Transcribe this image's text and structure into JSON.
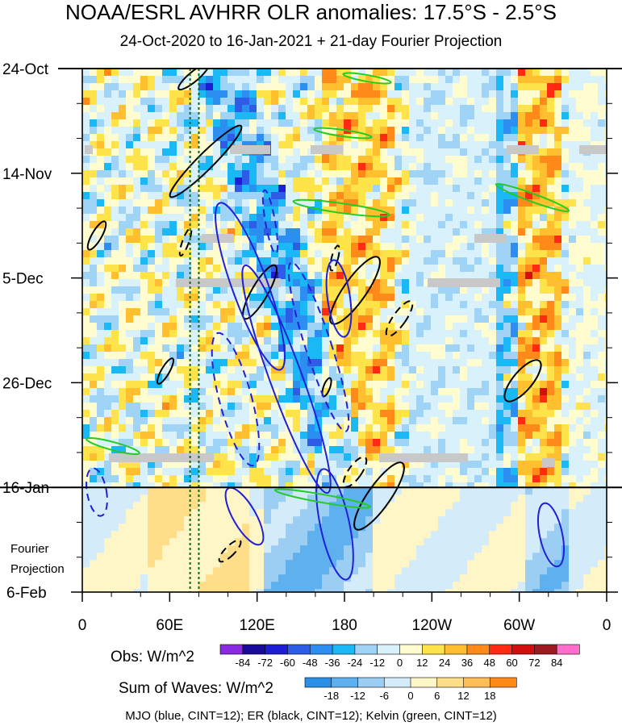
{
  "title": "NOAA/ESRL AVHRR OLR anomalies: 17.5°S - 2.5°S",
  "subtitle": "24-Oct-2020 to 16-Jan-2021 + 21-day Fourier Projection",
  "chart_data": {
    "type": "heatmap",
    "description_axis": "Hovmöller: longitude (x) vs time (y)",
    "x_ticks": [
      "0",
      "60E",
      "120E",
      "180",
      "120W",
      "60W",
      "0"
    ],
    "x_values_deg": [
      0,
      60,
      120,
      180,
      240,
      300,
      360
    ],
    "xlim": [
      0,
      360
    ],
    "y_ticks": [
      "24-Oct",
      "14-Nov",
      "5-Dec",
      "26-Dec",
      "16-Jan",
      "6-Feb"
    ],
    "y_day_offsets": [
      0,
      21,
      42,
      63,
      84,
      105
    ],
    "ylim_days": [
      0,
      105
    ],
    "projection_start_day": 84,
    "projection_label": [
      "Fourier",
      "Projection"
    ],
    "obs_colorbar": {
      "label": "Obs: W/m^2",
      "levels": [
        -84,
        -72,
        -60,
        -48,
        -36,
        -24,
        -12,
        0,
        12,
        24,
        36,
        48,
        60,
        72,
        84
      ],
      "colors": [
        "#8a2be2",
        "#1a0c9a",
        "#1d1dd6",
        "#2f5ce6",
        "#2b8ef0",
        "#1ab8f5",
        "#9fd4f6",
        "#d9f1fb",
        "#fffcd0",
        "#ffe34a",
        "#ffbf2e",
        "#ff8a1a",
        "#ff2a12",
        "#d20e0e",
        "#9e1a22",
        "#ff6ecb"
      ]
    },
    "waves_colorbar": {
      "label": "Sum of Waves: W/m^2",
      "levels": [
        -18,
        -12,
        -6,
        0,
        6,
        12,
        18
      ],
      "colors": [
        "#2a8fe6",
        "#5fb0ee",
        "#9ccdf2",
        "#d4ecfa",
        "#fff6c8",
        "#ffde8a",
        "#ffbd55",
        "#ff8a1a"
      ]
    },
    "overlay_contours": [
      {
        "name": "MJO",
        "color": "blue",
        "cint": 12
      },
      {
        "name": "ER",
        "color": "black",
        "cint": 12
      },
      {
        "name": "Kelvin",
        "color": "green",
        "cint": 12
      }
    ],
    "reference_lines": [
      {
        "style": "dotted",
        "color": "darkgreen",
        "lon": 74
      },
      {
        "style": "dotted",
        "color": "darkgreen",
        "lon": 80
      }
    ]
  },
  "footnote": "MJO (blue, CINT=12); ER (black, CINT=12); Kelvin (green, CINT=12)"
}
